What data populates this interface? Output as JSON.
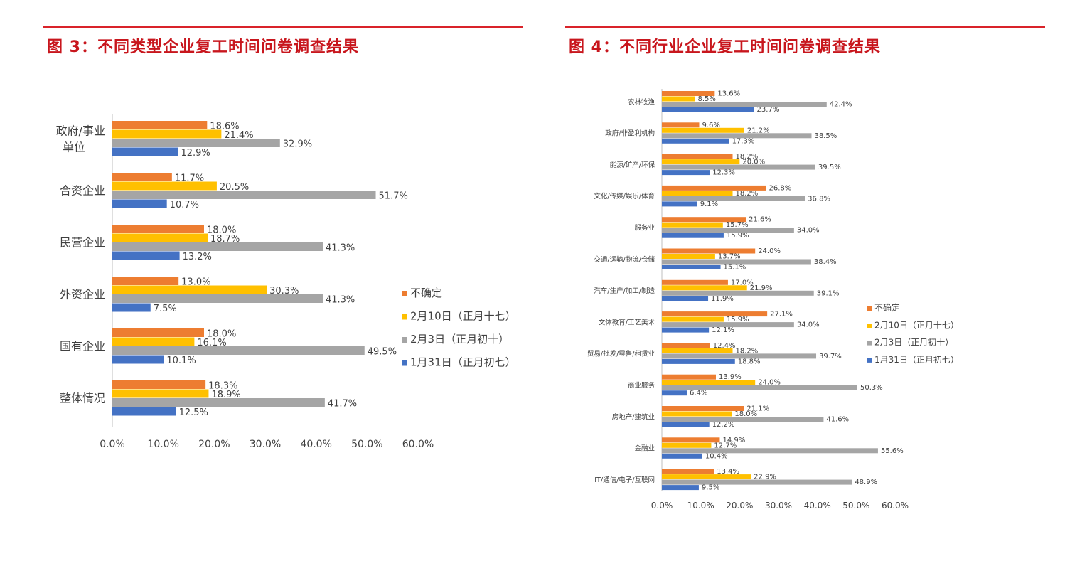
{
  "colors": {
    "title": "#c8161d",
    "rule": "#d9232a"
  },
  "chart_data": [
    {
      "type": "bar",
      "orientation": "horizontal",
      "title": "图 3：不同类型企业复工时间问卷调查结果",
      "categories": [
        "政府/事业\n单位",
        "合资企业",
        "民营企业",
        "外资企业",
        "国有企业",
        "整体情况"
      ],
      "series": [
        {
          "name": "不确定",
          "color": "#ED7D31",
          "values": [
            18.6,
            11.7,
            18.0,
            13.0,
            18.0,
            18.3
          ]
        },
        {
          "name": "2月10日（正月十七）",
          "color": "#FFC000",
          "values": [
            21.4,
            20.5,
            18.7,
            30.3,
            16.1,
            18.9
          ]
        },
        {
          "name": "2月3日（正月初十）",
          "color": "#A5A5A5",
          "values": [
            32.9,
            51.7,
            41.3,
            41.3,
            49.5,
            41.7
          ]
        },
        {
          "name": "1月31日（正月初七）",
          "color": "#4472C4",
          "values": [
            12.9,
            10.7,
            13.2,
            7.5,
            10.1,
            12.5
          ]
        }
      ],
      "xlim": [
        0,
        60
      ],
      "xticks": [
        "0.0%",
        "10.0%",
        "20.0%",
        "30.0%",
        "40.0%",
        "50.0%",
        "60.0%"
      ],
      "value_format": "percent_1dp",
      "grid": false,
      "legend": "right"
    },
    {
      "type": "bar",
      "orientation": "horizontal",
      "title": "图 4：不同行业企业复工时间问卷调查结果",
      "categories": [
        "农林牧渔",
        "政府/非盈利机构",
        "能源/矿产/环保",
        "文化/传媒/娱乐/体育",
        "服务业",
        "交通/运输/物流/仓储",
        "汽车/生产/加工/制造",
        "文体教育/工艺美术",
        "贸易/批发/零售/租赁业",
        "商业服务",
        "房地产/建筑业",
        "金融业",
        "IT/通信/电子/互联网"
      ],
      "series": [
        {
          "name": "不确定",
          "color": "#ED7D31",
          "values": [
            13.6,
            9.6,
            18.2,
            26.8,
            21.6,
            24.0,
            17.0,
            27.1,
            12.4,
            13.9,
            21.1,
            14.9,
            13.4
          ]
        },
        {
          "name": "2月10日（正月十七）",
          "color": "#FFC000",
          "values": [
            8.5,
            21.2,
            20.0,
            18.2,
            15.7,
            13.7,
            21.9,
            15.9,
            18.2,
            24.0,
            18.0,
            12.7,
            22.9
          ]
        },
        {
          "name": "2月3日（正月初十）",
          "color": "#A5A5A5",
          "values": [
            42.4,
            38.5,
            39.5,
            36.8,
            34.0,
            38.4,
            39.1,
            34.0,
            39.7,
            50.3,
            41.6,
            55.6,
            48.9
          ]
        },
        {
          "name": "1月31日（正月初七）",
          "color": "#4472C4",
          "values": [
            23.7,
            17.3,
            12.3,
            9.1,
            15.9,
            15.1,
            11.9,
            12.1,
            18.8,
            6.4,
            12.2,
            10.4,
            9.5
          ]
        }
      ],
      "xlim": [
        0,
        60
      ],
      "xticks": [
        "0.0%",
        "10.0%",
        "20.0%",
        "30.0%",
        "40.0%",
        "50.0%",
        "60.0%"
      ],
      "value_format": "percent_1dp",
      "grid": false,
      "legend": "right"
    }
  ]
}
